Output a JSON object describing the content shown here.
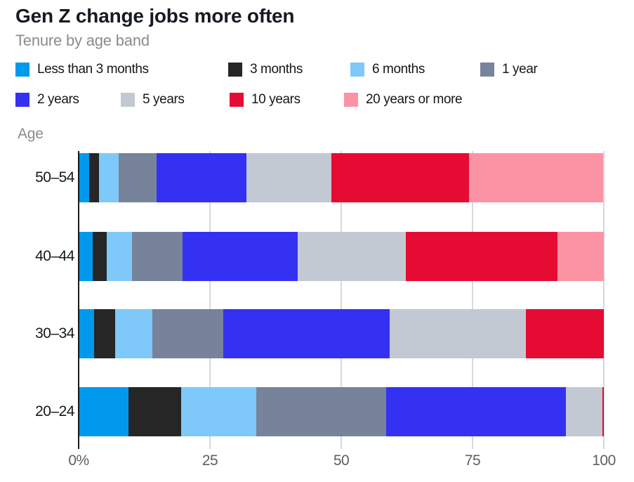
{
  "header": {
    "title": "Gen Z change jobs more often",
    "subtitle": "Tenure by age band"
  },
  "chart_data": {
    "type": "bar",
    "stacked": true,
    "orientation": "horizontal",
    "title": "Gen Z change jobs more often",
    "subtitle": "Tenure by age band",
    "ylabel": "Age",
    "xlabel": "",
    "xlim": [
      0,
      100
    ],
    "x_ticks": [
      {
        "value": 0,
        "label": "0%"
      },
      {
        "value": 25,
        "label": "25"
      },
      {
        "value": 50,
        "label": "50"
      },
      {
        "value": 75,
        "label": "75"
      },
      {
        "value": 100,
        "label": "100"
      }
    ],
    "grid": "vertical",
    "legend_position": "top",
    "categories": [
      "50–54",
      "40–44",
      "30–34",
      "20–24"
    ],
    "series": [
      {
        "name": "Less than 3 months",
        "color": "#0099ee",
        "values": [
          2.0,
          2.7,
          3.0,
          9.5
        ]
      },
      {
        "name": "3 months",
        "color": "#262626",
        "values": [
          1.9,
          2.6,
          4.0,
          10.0
        ]
      },
      {
        "name": "6 months",
        "color": "#7fc8fa",
        "values": [
          3.7,
          4.8,
          7.0,
          14.3
        ]
      },
      {
        "name": "1 year",
        "color": "#76839b",
        "values": [
          7.2,
          9.7,
          13.5,
          24.7
        ]
      },
      {
        "name": "2 years",
        "color": "#3431f2",
        "values": [
          17.2,
          21.9,
          31.7,
          34.3
        ]
      },
      {
        "name": "5 years",
        "color": "#c3c9d2",
        "values": [
          16.1,
          20.6,
          26.0,
          7.0
        ]
      },
      {
        "name": "10 years",
        "color": "#e60b32",
        "values": [
          26.3,
          28.9,
          14.8,
          0.2
        ]
      },
      {
        "name": "20 years or more",
        "color": "#fb93a4",
        "values": [
          25.5,
          8.8,
          0.0,
          0.0
        ]
      }
    ]
  }
}
